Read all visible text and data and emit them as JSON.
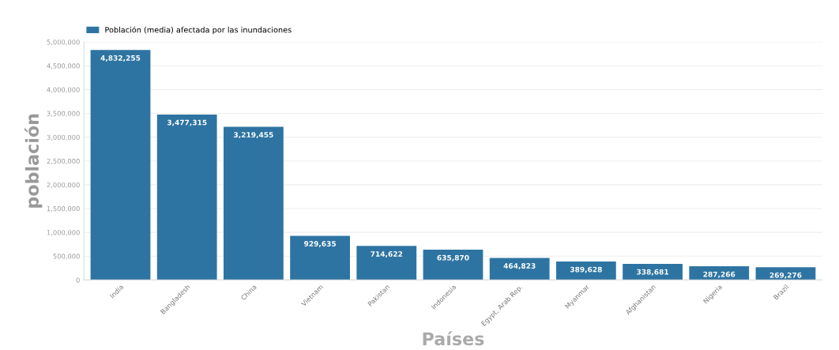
{
  "chart_data": {
    "type": "bar",
    "xlabel": "Países",
    "ylabel": "población",
    "categories": [
      "India",
      "Bangladesh",
      "China",
      "Vietnam",
      "Pakistan",
      "Indonesia",
      "Egypt, Arab Rep.",
      "Myanmar",
      "Afghanistan",
      "Nigeria",
      "Brazil"
    ],
    "series": [
      {
        "name": "Población (media) afectada por las inundaciones",
        "color": "#2e74a2",
        "values": [
          4832255,
          3477315,
          3219455,
          929635,
          714622,
          635870,
          464823,
          389628,
          338681,
          287266,
          269276
        ],
        "value_labels": [
          "4,832,255",
          "3,477,315",
          "3,219,455",
          "929,635",
          "714,622",
          "635,870",
          "464,823",
          "389,628",
          "338,681",
          "287,266",
          "269,276"
        ]
      }
    ],
    "ylim": [
      0,
      5000000
    ],
    "yticks": [
      {
        "value": 0,
        "label": "0"
      },
      {
        "value": 500000,
        "label": "500,000"
      },
      {
        "value": 1000000,
        "label": "1,000,000"
      },
      {
        "value": 1500000,
        "label": "1,500,000"
      },
      {
        "value": 2000000,
        "label": "2,000,000"
      },
      {
        "value": 2500000,
        "label": "2,500,000"
      },
      {
        "value": 3000000,
        "label": "3,000,000"
      },
      {
        "value": 3500000,
        "label": "3,500,000"
      },
      {
        "value": 4000000,
        "label": "4,000,000"
      },
      {
        "value": 4500000,
        "label": "4,500,000"
      },
      {
        "value": 5000000,
        "label": "5,000,000"
      }
    ],
    "grid": "y",
    "legend": "top left"
  }
}
